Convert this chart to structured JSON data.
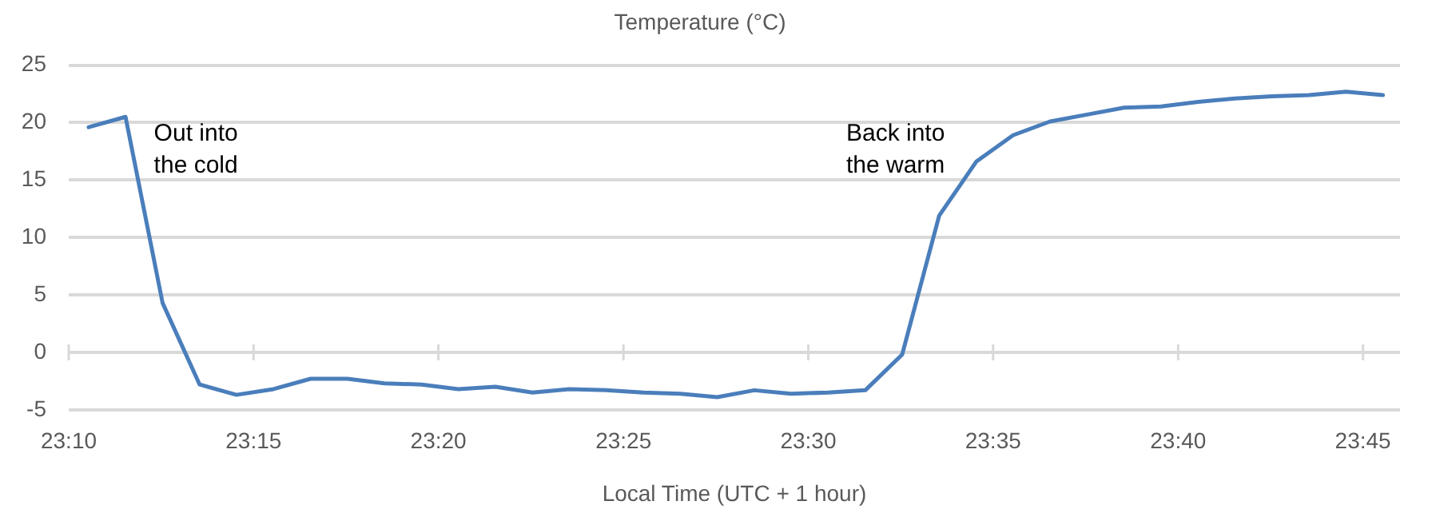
{
  "chart_data": {
    "type": "line",
    "title": "Temperature (°C)",
    "xlabel": "Local Time (UTC + 1 hour)",
    "x": [
      23.1757,
      23.1923,
      23.209,
      23.2257,
      23.2423,
      23.259,
      23.2757,
      23.2923,
      23.309,
      23.3257,
      23.3423,
      23.359,
      23.3757,
      23.3923,
      23.409,
      23.4257,
      23.4423,
      23.459,
      23.4757,
      23.4923,
      23.509,
      23.5257,
      23.5423,
      23.559,
      23.5757,
      23.5923,
      23.609,
      23.6257,
      23.6423,
      23.659,
      23.6757,
      23.6923,
      23.709,
      23.7257,
      23.7423,
      23.759
    ],
    "series": [
      {
        "color": "#4a7ebb",
        "values": [
          19.6,
          20.5,
          4.3,
          -2.8,
          -3.7,
          -3.2,
          -2.3,
          -2.3,
          -2.7,
          -2.8,
          -3.2,
          -3.0,
          -3.5,
          -3.2,
          -3.3,
          -3.5,
          -3.6,
          -3.9,
          -3.3,
          -3.6,
          -3.5,
          -3.3,
          -0.2,
          11.9,
          16.6,
          18.9,
          20.1,
          20.7,
          21.3,
          21.4,
          21.8,
          22.1,
          22.3,
          22.4,
          22.7,
          22.4
        ]
      }
    ],
    "xlim": [
      23.1667,
      23.7667
    ],
    "xticks": [
      {
        "value": 23.1667,
        "label": "23:10"
      },
      {
        "value": 23.25,
        "label": "23:15"
      },
      {
        "value": 23.3333,
        "label": "23:20"
      },
      {
        "value": 23.4167,
        "label": "23:25"
      },
      {
        "value": 23.5,
        "label": "23:30"
      },
      {
        "value": 23.5833,
        "label": "23:35"
      },
      {
        "value": 23.6667,
        "label": "23:40"
      },
      {
        "value": 23.75,
        "label": "23:45"
      }
    ],
    "ylim": [
      -5,
      25
    ],
    "yticks": [
      -5,
      0,
      5,
      10,
      15,
      20,
      25
    ],
    "grid": "y",
    "legend": false,
    "marker": "none",
    "line_style": "solid",
    "annotations": [
      "Out into\nthe cold",
      "Back into\nthe warm"
    ]
  }
}
